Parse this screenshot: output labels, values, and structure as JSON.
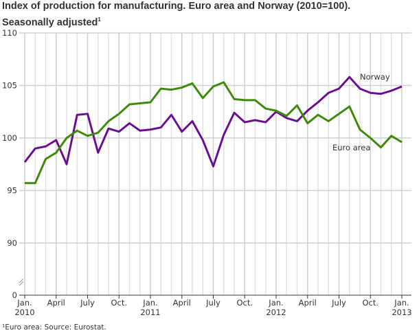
{
  "chart_data": {
    "type": "line",
    "title": "Index of production for manufacturing. Euro area and Norway (2010=100).",
    "title_line2": "Seasonally adjusted",
    "title_footnote_mark": "1",
    "footnote": "¹Euro area: Source: Eurostat.",
    "y_ticks": [
      0,
      90,
      95,
      100,
      105,
      110
    ],
    "ylim": [
      90,
      110
    ],
    "y_axis_break": true,
    "grid": true,
    "x_tick_labels": [
      {
        "month": "Jan.",
        "year": "2010"
      },
      {
        "month": "April",
        "year": ""
      },
      {
        "month": "July",
        "year": ""
      },
      {
        "month": "Oct.",
        "year": ""
      },
      {
        "month": "Jan.",
        "year": "2011"
      },
      {
        "month": "April",
        "year": ""
      },
      {
        "month": "July",
        "year": ""
      },
      {
        "month": "Oct.",
        "year": ""
      },
      {
        "month": "Jan.",
        "year": "2012"
      },
      {
        "month": "April",
        "year": ""
      },
      {
        "month": "July",
        "year": ""
      },
      {
        "month": "Oct.",
        "year": ""
      },
      {
        "month": "Jan.",
        "year": "2013"
      }
    ],
    "x_start": "2010-01",
    "x_end": "2013-01",
    "series": [
      {
        "name": "Norway",
        "color": "#6a0f8e",
        "values": [
          97.7,
          99.0,
          99.2,
          99.8,
          97.5,
          102.2,
          102.3,
          98.6,
          100.9,
          100.6,
          101.4,
          100.7,
          100.8,
          101.0,
          102.2,
          100.6,
          101.6,
          99.8,
          97.3,
          100.3,
          102.4,
          101.5,
          101.7,
          101.5,
          102.5,
          101.9,
          101.6,
          102.6,
          103.4,
          104.3,
          104.7,
          105.8,
          104.7,
          104.3,
          104.2,
          104.5,
          104.9
        ]
      },
      {
        "name": "Euro area",
        "color": "#3e8a0a",
        "values": [
          95.7,
          95.7,
          98.0,
          98.6,
          100.0,
          100.7,
          100.2,
          100.5,
          101.6,
          102.3,
          103.2,
          103.3,
          103.4,
          104.7,
          104.6,
          104.8,
          105.2,
          103.8,
          104.9,
          105.3,
          103.7,
          103.6,
          103.6,
          102.8,
          102.6,
          102.1,
          103.1,
          101.4,
          102.2,
          101.6,
          102.3,
          103.0,
          100.8,
          100.0,
          99.1,
          100.2,
          99.6
        ]
      }
    ]
  }
}
